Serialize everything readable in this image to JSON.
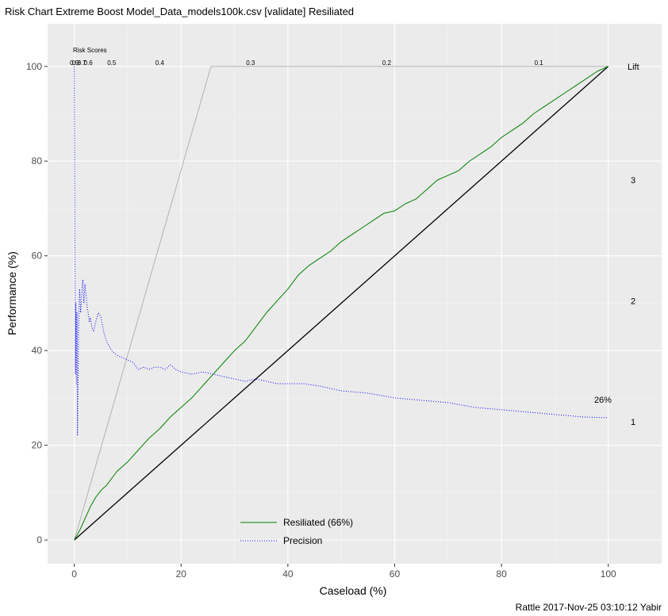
{
  "chart_data": {
    "type": "line",
    "title": "Risk Chart Extreme Boost Model_Data_models100k.csv [validate] Resiliated",
    "xlabel": "Caseload (%)",
    "ylabel": "Performance (%)",
    "xlim": [
      -5,
      110
    ],
    "ylim": [
      -5,
      109
    ],
    "x_ticks": [
      0,
      20,
      40,
      60,
      80,
      100
    ],
    "y_ticks": [
      0,
      20,
      40,
      60,
      80,
      100
    ],
    "grid": true,
    "background": "#ebebeb",
    "legend": {
      "placement": "bottom-center",
      "entries": [
        "Resiliated (66%)",
        "Precision"
      ]
    },
    "risk_scores": {
      "label": "Risk Scores",
      "labels": [
        {
          "text": "0.9",
          "x": 0.0
        },
        {
          "text": "0.8",
          "x": 0.4
        },
        {
          "text": "0.7",
          "x": 1.4
        },
        {
          "text": "0.6",
          "x": 2.6
        },
        {
          "text": "0.5",
          "x": 7.0
        },
        {
          "text": "0.4",
          "x": 16.0
        },
        {
          "text": "0.3",
          "x": 33.0
        },
        {
          "text": "0.2",
          "x": 58.5
        },
        {
          "text": "0.1",
          "x": 87.0
        }
      ]
    },
    "lift_axis": {
      "label": "Lift",
      "ticks": [
        {
          "text": "3",
          "y": 76
        },
        {
          "text": "2",
          "y": 50.5
        },
        {
          "text": "1",
          "y": 25
        }
      ]
    },
    "annotation": {
      "text": "26%",
      "x": 99,
      "y": 29
    },
    "series": [
      {
        "name": "Resiliated (66%)",
        "color": "#008000",
        "style": "solid",
        "x": [
          0,
          1,
          2,
          3,
          4,
          5,
          6,
          7,
          8,
          9,
          10,
          12,
          14,
          16,
          18,
          20,
          22,
          24,
          26,
          28,
          30,
          32,
          34,
          36,
          38,
          40,
          42,
          44,
          46,
          48,
          50,
          52,
          54,
          56,
          58,
          60,
          62,
          64,
          66,
          68,
          70,
          72,
          74,
          76,
          78,
          80,
          82,
          84,
          86,
          88,
          90,
          92,
          94,
          96,
          98,
          100
        ],
        "y": [
          0,
          2,
          4.5,
          7,
          9,
          10.5,
          11.5,
          13,
          14.5,
          15.5,
          16.5,
          19,
          21.5,
          23.5,
          26,
          28,
          30,
          32.5,
          35,
          37.5,
          40,
          42,
          45,
          48,
          50.5,
          53,
          56,
          58,
          59.5,
          61,
          63,
          64.5,
          66,
          67.5,
          69,
          69.5,
          71,
          72,
          74,
          76,
          77,
          78,
          80,
          81.5,
          83,
          85,
          86.5,
          88,
          90,
          91.5,
          93,
          94.5,
          96,
          97.5,
          99,
          100
        ]
      },
      {
        "name": "Precision",
        "color": "#0000ff",
        "style": "dotted",
        "x": [
          0,
          0.2,
          0.3,
          0.4,
          0.5,
          0.6,
          0.8,
          1.0,
          1.2,
          1.4,
          1.6,
          1.8,
          2.0,
          2.2,
          2.4,
          2.6,
          2.8,
          3.0,
          3.3,
          3.6,
          4.0,
          4.5,
          5.0,
          5.5,
          6,
          7,
          8,
          9,
          10,
          11,
          12,
          13,
          14,
          15,
          16,
          17,
          18,
          19,
          20,
          22,
          24,
          26,
          28,
          30,
          32,
          34,
          36,
          38,
          40,
          43,
          46,
          50,
          55,
          60,
          65,
          70,
          75,
          80,
          85,
          90,
          95,
          100
        ],
        "y": [
          100,
          35,
          50,
          33,
          48,
          22,
          45,
          53,
          48,
          52,
          55,
          50,
          54,
          52,
          49,
          48,
          46,
          47,
          45,
          44,
          46,
          48,
          47,
          44,
          42,
          40,
          39,
          38.5,
          38,
          37.5,
          36,
          36.5,
          36,
          36.5,
          36.5,
          36,
          37,
          36,
          35.5,
          35,
          35.5,
          35,
          34.5,
          34,
          33.5,
          34,
          33.5,
          33,
          33,
          33,
          32.5,
          31.5,
          31,
          30,
          29.5,
          29,
          28,
          27.5,
          27,
          26.5,
          26,
          25.8
        ]
      },
      {
        "name": "",
        "color": "#000000",
        "style": "solid",
        "x": [
          0,
          100
        ],
        "y": [
          0,
          100
        ]
      },
      {
        "name": "",
        "color": "#b3b3b3",
        "style": "solid",
        "x": [
          0,
          25.6,
          100
        ],
        "y": [
          0,
          100,
          100
        ]
      }
    ]
  },
  "footer": "Rattle 2017-Nov-25 03:10:12 Yabir"
}
